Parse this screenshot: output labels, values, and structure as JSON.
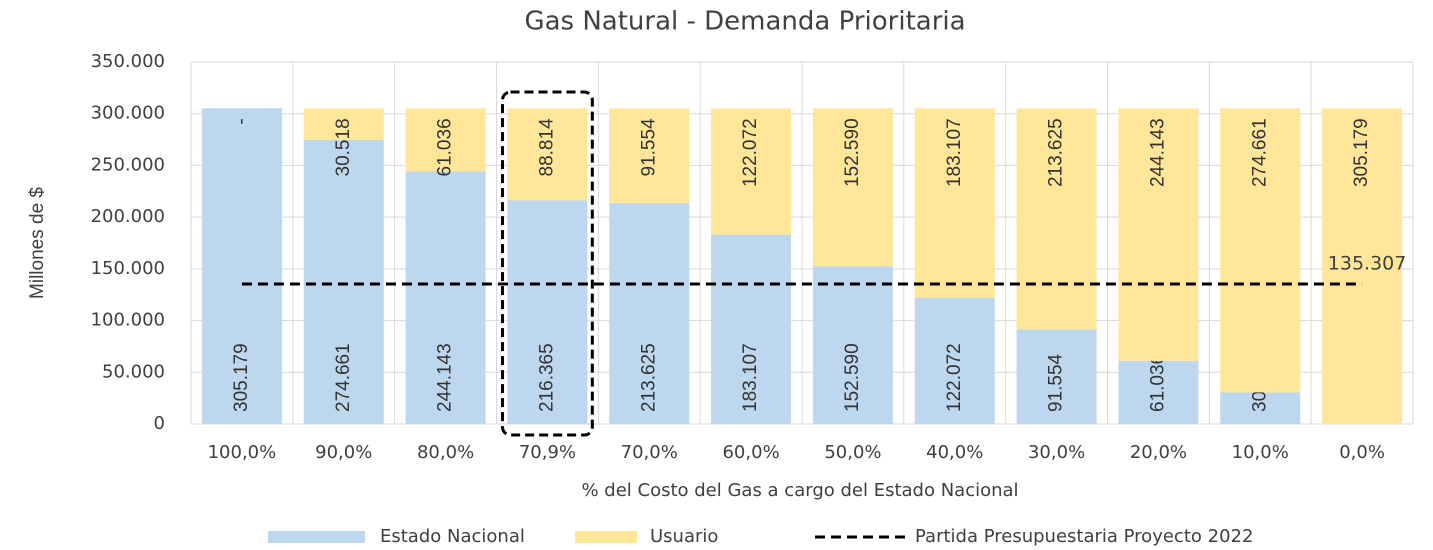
{
  "chart_data": {
    "type": "stacked_bar",
    "title": "Gas Natural - Demanda Prioritaria",
    "x_label": "% del Costo del Gas a cargo del Estado Nacional",
    "y_label": "Millones de $",
    "categories": [
      "100,0%",
      "90,0%",
      "80,0%",
      "70,9%",
      "70,0%",
      "60,0%",
      "50,0%",
      "40,0%",
      "30,0%",
      "20,0%",
      "10,0%",
      "0,0%"
    ],
    "series": [
      {
        "name": "Estado Nacional",
        "color": "#bdd7ee",
        "values": [
          305179,
          274661,
          244143,
          216365,
          213625,
          183107,
          152590,
          122072,
          91554,
          61036,
          30518,
          0
        ],
        "value_labels": [
          "305.179",
          "274.661",
          "244.143",
          "216.365",
          "213.625",
          "183.107",
          "152.590",
          "122.072",
          "91.554",
          "61.036",
          "30.518",
          "-"
        ]
      },
      {
        "name": "Usuario",
        "color": "#ffe699",
        "values": [
          0,
          30518,
          61036,
          88814,
          91554,
          122072,
          152590,
          183107,
          213625,
          244143,
          274661,
          305179
        ],
        "value_labels": [
          "-",
          "30.518",
          "61.036",
          "88.814",
          "91.554",
          "122.072",
          "152.590",
          "183.107",
          "213.625",
          "244.143",
          "274.661",
          "305.179"
        ]
      }
    ],
    "reference_line": {
      "name": "Partida Presupuestaria Proyecto 2022",
      "value": 135307,
      "label": "135.307",
      "color": "#000000"
    },
    "ylim": [
      0,
      350000
    ],
    "yticks": [
      0,
      {
        "value": 50000,
        "label": "50.000"
      },
      {
        "value": 100000,
        "label": "100.000"
      },
      {
        "value": 150000,
        "label": "150.000"
      },
      {
        "value": 200000,
        "label": "200.000"
      },
      {
        "value": 250000,
        "label": "250.000"
      },
      {
        "value": 300000,
        "label": "300.000"
      },
      {
        "value": 350000,
        "label": "350.000"
      }
    ],
    "grid": true
  }
}
